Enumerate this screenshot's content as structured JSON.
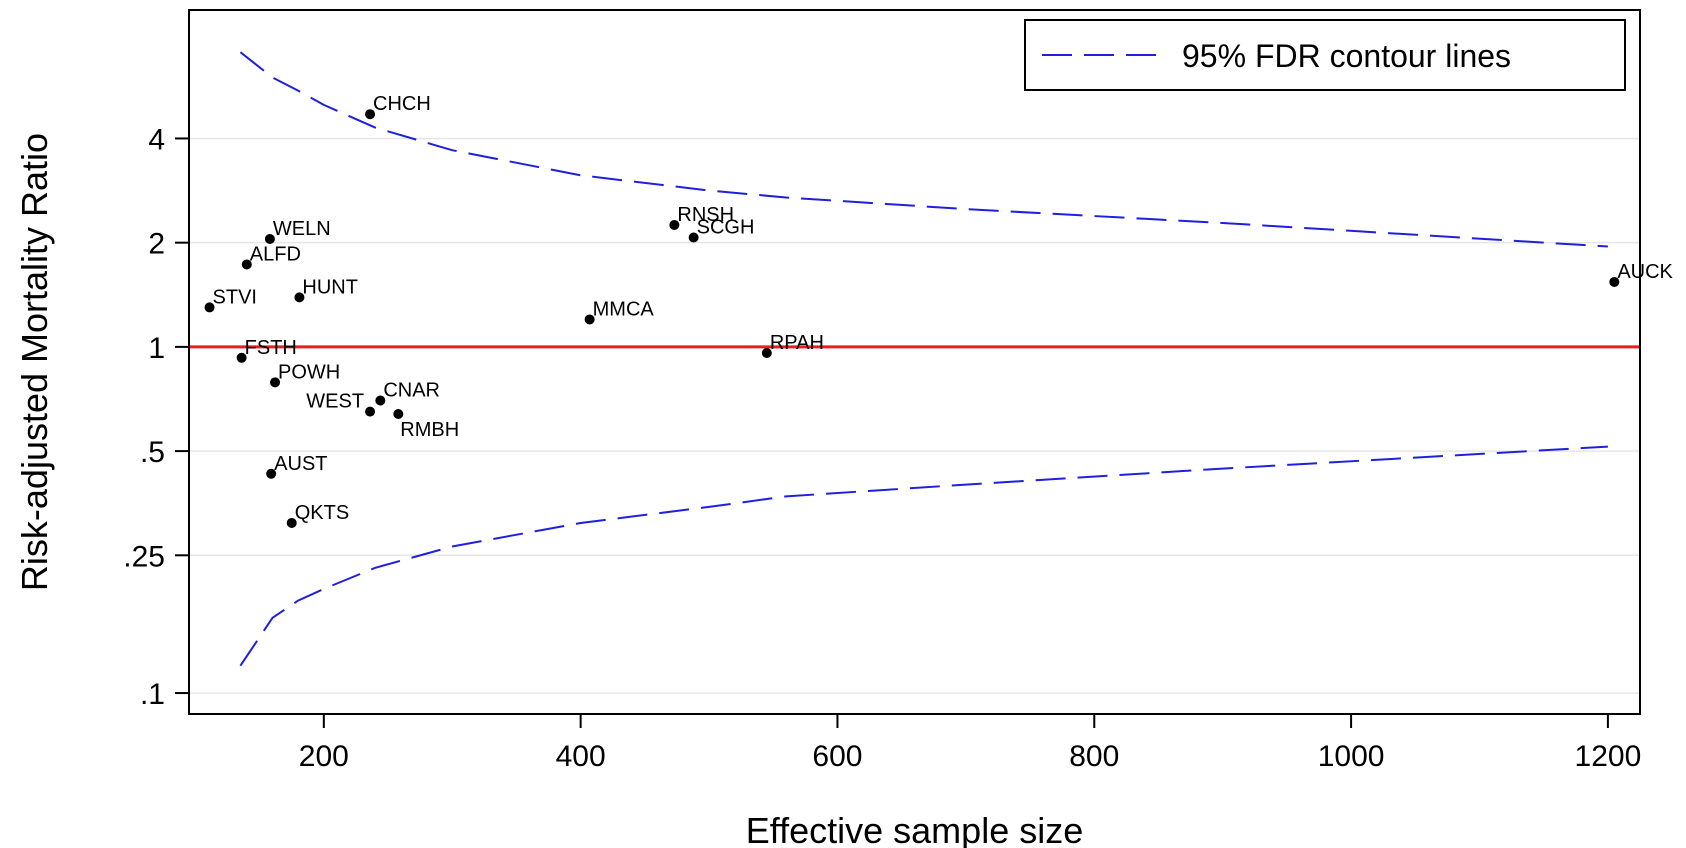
{
  "chart_data": {
    "type": "scatter",
    "title": "",
    "xlabel": "Effective sample size",
    "ylabel": "Risk-adjusted Mortality Ratio",
    "y_scale": "log",
    "xlim": [
      95,
      1225
    ],
    "ylim": [
      0.087,
      9.4
    ],
    "xticks": [
      200,
      400,
      600,
      800,
      1000,
      1200
    ],
    "xtick_labels": [
      "200",
      "400",
      "600",
      "800",
      "1000",
      "1200"
    ],
    "yticks": [
      0.1,
      0.25,
      0.5,
      1,
      2,
      4
    ],
    "ytick_labels": [
      ".1",
      ".25",
      ".5",
      "1",
      "2",
      "4"
    ],
    "grid": "horizontal",
    "reference_line": {
      "y": 1,
      "color": "#ee1c1c"
    },
    "legend": {
      "position": "top-right",
      "entries": [
        "95% FDR contour lines"
      ]
    },
    "points": [
      {
        "label": "CHCH",
        "x": 236,
        "y": 4.7
      },
      {
        "label": "WELN",
        "x": 158,
        "y": 2.05
      },
      {
        "label": "ALFD",
        "x": 140,
        "y": 1.73
      },
      {
        "label": "HUNT",
        "x": 181,
        "y": 1.39
      },
      {
        "label": "STVI",
        "x": 111,
        "y": 1.3
      },
      {
        "label": "RNSH",
        "x": 473,
        "y": 2.25
      },
      {
        "label": "SCGH",
        "x": 488,
        "y": 2.07
      },
      {
        "label": "MMCA",
        "x": 407,
        "y": 1.2
      },
      {
        "label": "AUCK",
        "x": 1205,
        "y": 1.54
      },
      {
        "label": "RPAH",
        "x": 545,
        "y": 0.96
      },
      {
        "label": "FSTH",
        "x": 136,
        "y": 0.93
      },
      {
        "label": "POWH",
        "x": 162,
        "y": 0.79
      },
      {
        "label": "CNAR",
        "x": 244,
        "y": 0.7
      },
      {
        "label": "WEST",
        "x": 236,
        "y": 0.65
      },
      {
        "label": "RMBH",
        "x": 258,
        "y": 0.64
      },
      {
        "label": "AUST",
        "x": 159,
        "y": 0.43
      },
      {
        "label": "QKTS",
        "x": 175,
        "y": 0.31
      }
    ],
    "series": [
      {
        "name": "95% FDR contour lines",
        "color": "#1f1fe0",
        "x": [
          135,
          160,
          180,
          200,
          240,
          300,
          400,
          500,
          560,
          700,
          900,
          1200
        ],
        "upper": [
          7.1,
          6.0,
          5.5,
          5.0,
          4.3,
          3.7,
          3.13,
          2.83,
          2.7,
          2.5,
          2.28,
          1.95
        ],
        "lower": [
          0.12,
          0.165,
          0.185,
          0.2,
          0.23,
          0.265,
          0.31,
          0.345,
          0.37,
          0.4,
          0.445,
          0.515
        ]
      }
    ]
  }
}
